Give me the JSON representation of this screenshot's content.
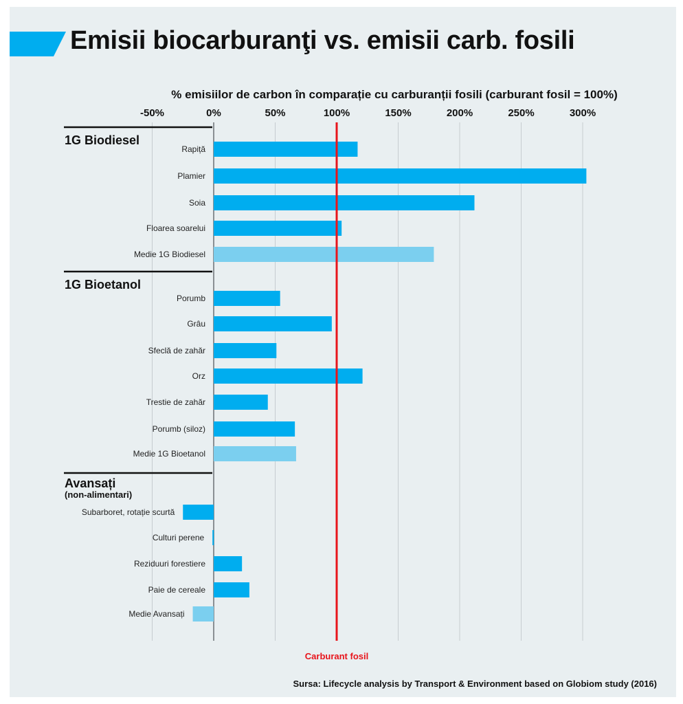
{
  "chart_data": {
    "type": "bar",
    "orientation": "horizontal",
    "title": "Emisii biocarburanţi vs. emisii carb. fosili",
    "xlabel": "% emisiilor de carbon în comparație cu carburanții fosili (carburant fosil = 100%)",
    "xticks": [
      "-50%",
      "0%",
      "50%",
      "100%",
      "150%",
      "200%",
      "250%",
      "300%"
    ],
    "xlim": [
      -50,
      300
    ],
    "grid": true,
    "reference_line": {
      "value": 100,
      "label": "Carburant fosil",
      "color": "#e8141b"
    },
    "colors": {
      "bar": "#00adef",
      "average": "#7bcfef"
    },
    "groups": [
      {
        "label": "1G Biodiesel",
        "sublabel": "",
        "items": [
          {
            "label": "Rapiță",
            "value": 117,
            "average": false
          },
          {
            "label": "Plamier",
            "value": 303,
            "average": false
          },
          {
            "label": "Soia",
            "value": 212,
            "average": false
          },
          {
            "label": "Floarea soarelui",
            "value": 104,
            "average": false
          },
          {
            "label": "Medie 1G Biodiesel",
            "value": 179,
            "average": true
          }
        ]
      },
      {
        "label": "1G Bioetanol",
        "sublabel": "",
        "items": [
          {
            "label": "Porumb",
            "value": 54,
            "average": false
          },
          {
            "label": "Grâu",
            "value": 96,
            "average": false
          },
          {
            "label": "Sfeclă de zahăr",
            "value": 51,
            "average": false
          },
          {
            "label": "Orz",
            "value": 121,
            "average": false
          },
          {
            "label": "Trestie de zahăr",
            "value": 44,
            "average": false
          },
          {
            "label": "Porumb (siloz)",
            "value": 66,
            "average": false
          },
          {
            "label": "Medie 1G Bioetanol",
            "value": 67,
            "average": true
          }
        ]
      },
      {
        "label": "Avansați",
        "sublabel": "(non-alimentari)",
        "items": [
          {
            "label": "Subarboret, rotație scurtă",
            "value": -25,
            "average": false
          },
          {
            "label": "Culturi perene",
            "value": -1,
            "average": false
          },
          {
            "label": "Reziduuri forestiere",
            "value": 23,
            "average": false
          },
          {
            "label": "Paie de cereale",
            "value": 29,
            "average": false
          },
          {
            "label": "Medie Avansați",
            "value": -17,
            "average": true
          }
        ]
      }
    ],
    "source": "Sursa: Lifecycle analysis by Transport & Environment based on Globiom study (2016)"
  }
}
